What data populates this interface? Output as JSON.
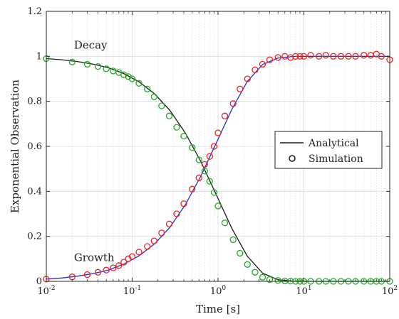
{
  "chart_data": {
    "type": "line",
    "xscale": "log",
    "xlim": [
      0.01,
      100
    ],
    "ylim": [
      0,
      1.2
    ],
    "xlabel": "Time [s]",
    "ylabel": "Exponential Observation",
    "grid": true,
    "legend_position": "center-right",
    "x_ticks": [
      {
        "value": 0.01,
        "base": "10",
        "exp": "-2"
      },
      {
        "value": 0.1,
        "base": "10",
        "exp": "-1"
      },
      {
        "value": 1,
        "base": "10",
        "exp": "0"
      },
      {
        "value": 10,
        "base": "10",
        "exp": "1"
      },
      {
        "value": 100,
        "base": "10",
        "exp": "2"
      }
    ],
    "y_ticks": [
      {
        "value": 0,
        "label": "0"
      },
      {
        "value": 0.2,
        "label": "0.2"
      },
      {
        "value": 0.4,
        "label": "0.4"
      },
      {
        "value": 0.6,
        "label": "0.6"
      },
      {
        "value": 0.8,
        "label": "0.8"
      },
      {
        "value": 1.0,
        "label": "1"
      },
      {
        "value": 1.2,
        "label": "1.2"
      }
    ],
    "legend": {
      "analytical_label": "Analytical",
      "simulation_label": "Simulation"
    },
    "annotations": [
      {
        "text": "Decay",
        "x": 0.021,
        "y": 1.035
      },
      {
        "text": "Growth",
        "x": 0.021,
        "y": 0.09
      }
    ],
    "series": [
      {
        "name": "Analytical",
        "role": "decay-line",
        "color": "#1a1a1a",
        "x": [
          0.01,
          0.0151,
          0.0229,
          0.0347,
          0.0525,
          0.0794,
          0.12,
          0.182,
          0.275,
          0.417,
          0.631,
          0.955,
          1.445,
          2.188,
          3.311,
          5.012,
          7.586,
          11.48,
          17.38,
          26.3,
          39.81,
          60.26,
          91.2,
          100
        ],
        "y": [
          0.99,
          0.985,
          0.977,
          0.966,
          0.95,
          0.924,
          0.887,
          0.834,
          0.76,
          0.659,
          0.532,
          0.385,
          0.236,
          0.112,
          0.036,
          0.007,
          0.0005,
          0,
          0,
          0,
          0,
          0,
          0,
          0
        ]
      },
      {
        "name": "Analytical",
        "role": "growth-line",
        "color": "#2233cc",
        "x": [
          0.01,
          0.0151,
          0.0229,
          0.0347,
          0.0525,
          0.0794,
          0.12,
          0.182,
          0.275,
          0.417,
          0.631,
          0.955,
          1.445,
          2.188,
          3.311,
          5.012,
          7.586,
          11.48,
          17.38,
          26.3,
          39.81,
          60.26,
          91.2,
          100
        ],
        "y": [
          0.01,
          0.015,
          0.023,
          0.034,
          0.05,
          0.076,
          0.113,
          0.166,
          0.24,
          0.341,
          0.468,
          0.615,
          0.764,
          0.888,
          0.964,
          0.993,
          0.9995,
          1,
          1,
          1,
          1,
          1,
          1,
          1
        ]
      },
      {
        "name": "Simulation",
        "role": "decay-markers",
        "color": "#22aa22",
        "x": [
          0.01,
          0.02,
          0.03,
          0.04,
          0.05,
          0.06,
          0.07,
          0.08,
          0.09,
          0.1,
          0.12,
          0.15,
          0.18,
          0.22,
          0.27,
          0.33,
          0.4,
          0.5,
          0.6,
          0.7,
          0.8,
          0.9,
          1.0,
          1.2,
          1.5,
          1.8,
          2.2,
          2.7,
          3.3,
          4.0,
          5.0,
          6.0,
          7.0,
          8.0,
          9.0,
          10,
          12,
          15,
          18,
          22,
          27,
          33,
          40,
          50,
          60,
          70,
          80,
          100
        ],
        "y": [
          0.99,
          0.975,
          0.965,
          0.955,
          0.945,
          0.935,
          0.928,
          0.918,
          0.91,
          0.9,
          0.88,
          0.855,
          0.82,
          0.78,
          0.735,
          0.685,
          0.645,
          0.595,
          0.54,
          0.49,
          0.445,
          0.395,
          0.335,
          0.26,
          0.185,
          0.125,
          0.075,
          0.04,
          0.018,
          0.008,
          0.004,
          0.002,
          0.001,
          0,
          0,
          0,
          0,
          0,
          0,
          0,
          0,
          0,
          0,
          0,
          0,
          0,
          0,
          0
        ]
      },
      {
        "name": "Simulation",
        "role": "growth-markers",
        "color": "#ee2222",
        "x": [
          0.01,
          0.02,
          0.03,
          0.04,
          0.05,
          0.06,
          0.07,
          0.08,
          0.09,
          0.1,
          0.12,
          0.15,
          0.18,
          0.22,
          0.27,
          0.33,
          0.4,
          0.5,
          0.6,
          0.7,
          0.8,
          0.9,
          1.0,
          1.2,
          1.5,
          1.8,
          2.2,
          2.7,
          3.3,
          4.0,
          5.0,
          6.0,
          7.0,
          8.0,
          9.0,
          10,
          12,
          15,
          18,
          22,
          27,
          33,
          40,
          50,
          60,
          70,
          80,
          100
        ],
        "y": [
          0.01,
          0.02,
          0.03,
          0.04,
          0.05,
          0.06,
          0.07,
          0.085,
          0.1,
          0.11,
          0.13,
          0.155,
          0.18,
          0.215,
          0.255,
          0.3,
          0.345,
          0.41,
          0.46,
          0.52,
          0.555,
          0.6,
          0.66,
          0.735,
          0.79,
          0.855,
          0.9,
          0.94,
          0.965,
          0.985,
          0.995,
          1.0,
          0.995,
          1.0,
          1.0,
          1.0,
          1.005,
          1.0,
          1.005,
          1.0,
          1.0,
          1.0,
          1.0,
          1.005,
          1.005,
          1.01,
          1.0,
          0.985
        ]
      }
    ]
  }
}
